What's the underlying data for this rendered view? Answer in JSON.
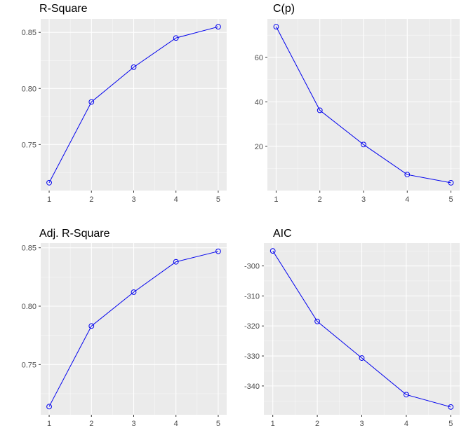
{
  "chart_data": [
    {
      "type": "line",
      "title": "R-Square",
      "x": [
        1,
        2,
        3,
        4,
        5
      ],
      "values": [
        0.716,
        0.788,
        0.819,
        0.845,
        0.855
      ],
      "xticks": [
        1,
        2,
        3,
        4,
        5
      ],
      "yticks": [
        0.75,
        0.8,
        0.85
      ],
      "ytick_labels": [
        "0.75",
        "0.80",
        "0.85"
      ],
      "xlim": [
        0.8,
        5.2
      ],
      "ylim": [
        0.709,
        0.862
      ],
      "grid": true,
      "legend": "none",
      "line_color": "#0000ee",
      "panel_color": "#ebebeb"
    },
    {
      "type": "line",
      "title": "C(p)",
      "x": [
        1,
        2,
        3,
        4,
        5
      ],
      "values": [
        73.8,
        36.2,
        20.8,
        7.3,
        3.6
      ],
      "xticks": [
        1,
        2,
        3,
        4,
        5
      ],
      "yticks": [
        20,
        40,
        60
      ],
      "ytick_labels": [
        "20",
        "40",
        "60"
      ],
      "xlim": [
        0.8,
        5.2
      ],
      "ylim": [
        0.1,
        77.3
      ],
      "grid": true,
      "legend": "none",
      "line_color": "#0000ee",
      "panel_color": "#ebebeb"
    },
    {
      "type": "line",
      "title": "Adj. R-Square",
      "x": [
        1,
        2,
        3,
        4,
        5
      ],
      "values": [
        0.714,
        0.783,
        0.812,
        0.838,
        0.847
      ],
      "xticks": [
        1,
        2,
        3,
        4,
        5
      ],
      "yticks": [
        0.75,
        0.8,
        0.85
      ],
      "ytick_labels": [
        "0.75",
        "0.80",
        "0.85"
      ],
      "xlim": [
        0.8,
        5.2
      ],
      "ylim": [
        0.707,
        0.854
      ],
      "grid": true,
      "legend": "none",
      "line_color": "#0000ee",
      "panel_color": "#ebebeb"
    },
    {
      "type": "line",
      "title": "AIC",
      "x": [
        1,
        2,
        3,
        4,
        5
      ],
      "values": [
        -295.0,
        -318.5,
        -330.7,
        -342.9,
        -347.0
      ],
      "xticks": [
        1,
        2,
        3,
        4,
        5
      ],
      "yticks": [
        -340,
        -330,
        -320,
        -310,
        -300
      ],
      "ytick_labels": [
        "-340",
        "-330",
        "-320",
        "-310",
        "-300"
      ],
      "xlim": [
        0.8,
        5.2
      ],
      "ylim": [
        -349.6,
        -292.4
      ],
      "grid": true,
      "legend": "none",
      "line_color": "#0000ee",
      "panel_color": "#ebebeb"
    }
  ]
}
